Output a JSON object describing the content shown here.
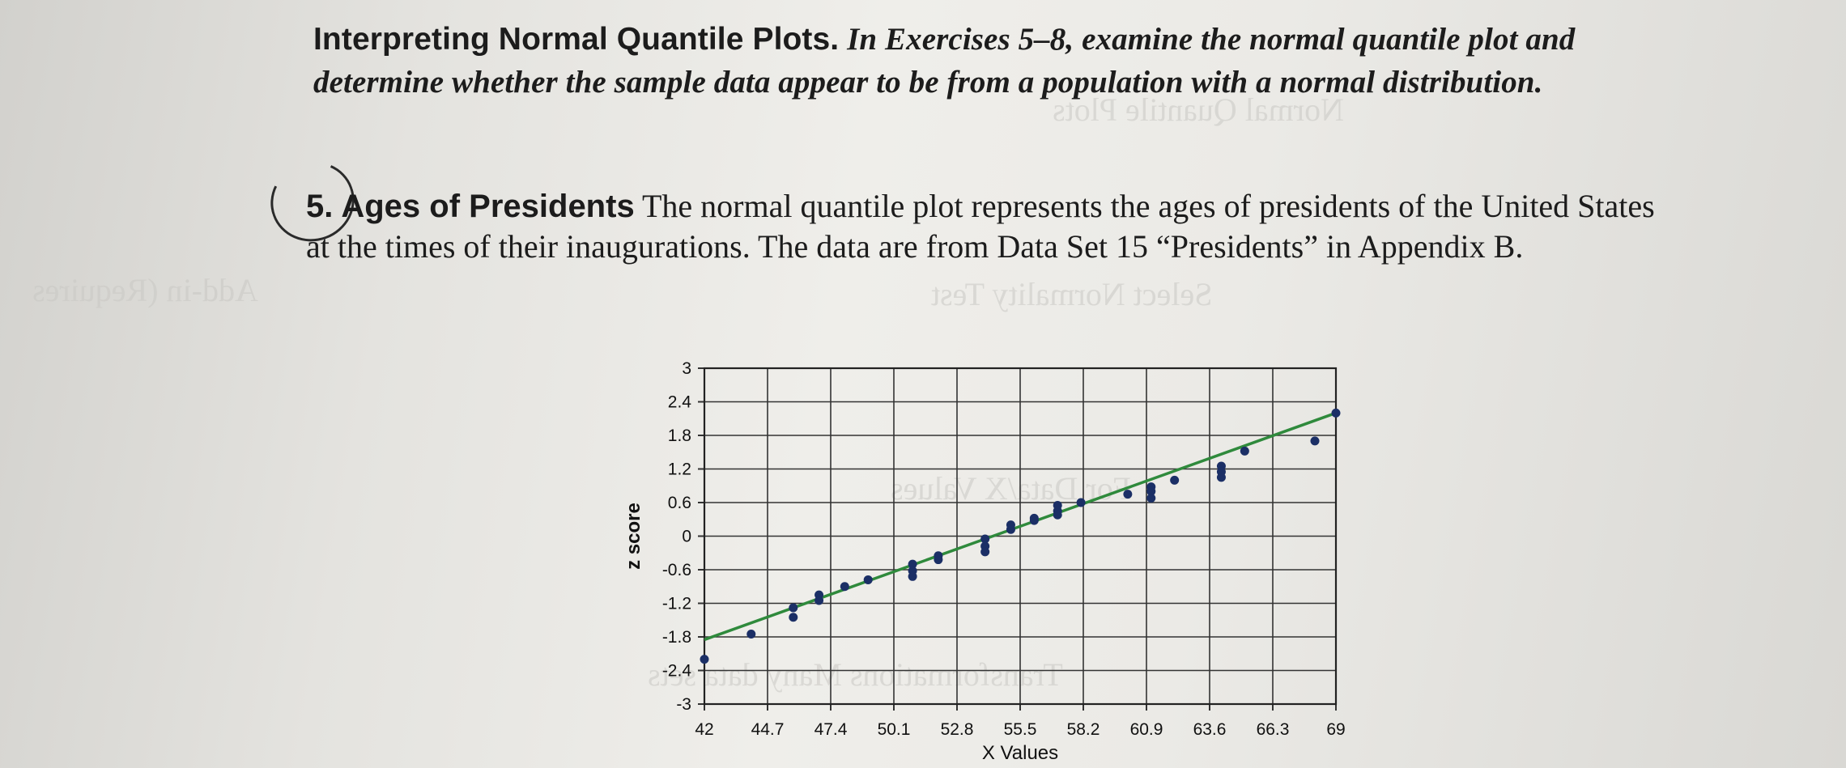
{
  "heading": {
    "section_title": "Interpreting Normal Quantile Plots.",
    "section_text": "In Exercises 5–8, examine the normal quantile plot and determine whether the sample data appear to be from a population with a normal distribution."
  },
  "exercise": {
    "number": "5.",
    "title": "Ages of Presidents",
    "text": "The normal quantile plot represents the ages of presidents of the United States at the times of their inaugurations. The data are from Data Set 15 “Presidents” in Appendix B."
  },
  "colors": {
    "line": "#2f8a3c",
    "points": "#1b2f66",
    "grid": "#333333"
  },
  "chart_data": {
    "type": "scatter",
    "xlabel": "X Values",
    "ylabel": "z score",
    "xlim": [
      42,
      69
    ],
    "ylim": [
      -3,
      3
    ],
    "xticks": [
      "42",
      "44.7",
      "47.4",
      "50.1",
      "52.8",
      "55.5",
      "58.2",
      "60.9",
      "63.6",
      "66.3",
      "69"
    ],
    "yticks": [
      "3",
      "2.4",
      "1.8",
      "1.2",
      "0.6",
      "0",
      "-0.6",
      "-1.2",
      "-1.8",
      "-2.4",
      "-3"
    ],
    "grid": true,
    "trend_line": {
      "x": [
        42,
        69
      ],
      "y": [
        -1.85,
        2.2
      ]
    },
    "points": [
      {
        "x": 42,
        "y": -2.2
      },
      {
        "x": 44,
        "y": -1.75
      },
      {
        "x": 45.8,
        "y": -1.28
      },
      {
        "x": 45.8,
        "y": -1.45
      },
      {
        "x": 46.9,
        "y": -1.05
      },
      {
        "x": 46.9,
        "y": -1.15
      },
      {
        "x": 48,
        "y": -0.9
      },
      {
        "x": 49,
        "y": -0.78
      },
      {
        "x": 50.9,
        "y": -0.5
      },
      {
        "x": 50.9,
        "y": -0.62
      },
      {
        "x": 50.9,
        "y": -0.72
      },
      {
        "x": 52,
        "y": -0.42
      },
      {
        "x": 52,
        "y": -0.35
      },
      {
        "x": 54,
        "y": -0.05
      },
      {
        "x": 54,
        "y": -0.18
      },
      {
        "x": 54,
        "y": -0.28
      },
      {
        "x": 55.1,
        "y": 0.12
      },
      {
        "x": 55.1,
        "y": 0.2
      },
      {
        "x": 56.1,
        "y": 0.28
      },
      {
        "x": 56.1,
        "y": 0.32
      },
      {
        "x": 57.1,
        "y": 0.45
      },
      {
        "x": 57.1,
        "y": 0.55
      },
      {
        "x": 57.1,
        "y": 0.38
      },
      {
        "x": 58.1,
        "y": 0.6
      },
      {
        "x": 60.1,
        "y": 0.75
      },
      {
        "x": 61.1,
        "y": 0.88
      },
      {
        "x": 61.1,
        "y": 0.8
      },
      {
        "x": 61.1,
        "y": 0.68
      },
      {
        "x": 62.1,
        "y": 1.0
      },
      {
        "x": 64.1,
        "y": 1.25
      },
      {
        "x": 64.1,
        "y": 1.15
      },
      {
        "x": 64.1,
        "y": 1.05
      },
      {
        "x": 65.1,
        "y": 1.52
      },
      {
        "x": 68.1,
        "y": 1.7
      },
      {
        "x": 69,
        "y": 2.2
      }
    ]
  }
}
